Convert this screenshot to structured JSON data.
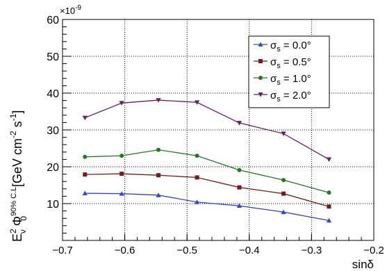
{
  "chart_data": {
    "type": "line",
    "title": "",
    "xlabel": "sinδ",
    "ylabel": "E²ν Φ₀^(90% C.L.) [GeV cm⁻² s⁻¹]",
    "ylabel_parts": {
      "E": "E",
      "nu": "ν",
      "sq": "2",
      "phi": "Φ",
      "zero": "0",
      "cl": "90% C.L.",
      "units": "[GeV cm",
      "cm_exp": "-2",
      "s": " s",
      "s_exp": "-1",
      "close": "]"
    },
    "y_exponent_label": "×10",
    "y_exponent_power": "-9",
    "xlim": [
      -0.7,
      -0.2
    ],
    "ylim": [
      0,
      60
    ],
    "x_ticks": [
      -0.7,
      -0.6,
      -0.5,
      -0.4,
      -0.3,
      -0.2
    ],
    "x_tick_labels": [
      "−0.7",
      "−0.6",
      "−0.5",
      "−0.4",
      "−0.3",
      "−0.2"
    ],
    "y_ticks": [
      10,
      20,
      30,
      40,
      50,
      60
    ],
    "y_tick_labels": [
      "10",
      "20",
      "30",
      "40",
      "50",
      "60"
    ],
    "grid": true,
    "legend_position": "top-right",
    "x": [
      -0.664,
      -0.605,
      -0.546,
      -0.484,
      -0.416,
      -0.345,
      -0.272
    ],
    "series": [
      {
        "name": "σs = 0.0°",
        "label_main": "σ",
        "label_sub": "s",
        "label_rest": " = 0.0°",
        "color": "#3344dd",
        "marker": "triangle-up",
        "values": [
          12.8,
          12.7,
          12.3,
          10.4,
          9.4,
          7.7,
          5.4
        ]
      },
      {
        "name": "σs = 0.5°",
        "label_main": "σ",
        "label_sub": "s",
        "label_rest": " = 0.5°",
        "color": "#7a1a1a",
        "marker": "square",
        "values": [
          17.9,
          18.1,
          17.7,
          17.1,
          14.4,
          12.7,
          9.2
        ]
      },
      {
        "name": "σs = 1.0°",
        "label_main": "σ",
        "label_sub": "s",
        "label_rest": " = 1.0°",
        "color": "#1e7a1e",
        "marker": "circle",
        "values": [
          22.7,
          23.0,
          24.6,
          23.0,
          19.1,
          16.4,
          13.0
        ]
      },
      {
        "name": "σs = 2.0°",
        "label_main": "σ",
        "label_sub": "s",
        "label_rest": " = 2.0°",
        "color": "#6a1a6a",
        "marker": "triangle-down",
        "values": [
          33.3,
          37.3,
          38.1,
          37.5,
          31.9,
          29.0,
          22.0
        ]
      }
    ]
  }
}
